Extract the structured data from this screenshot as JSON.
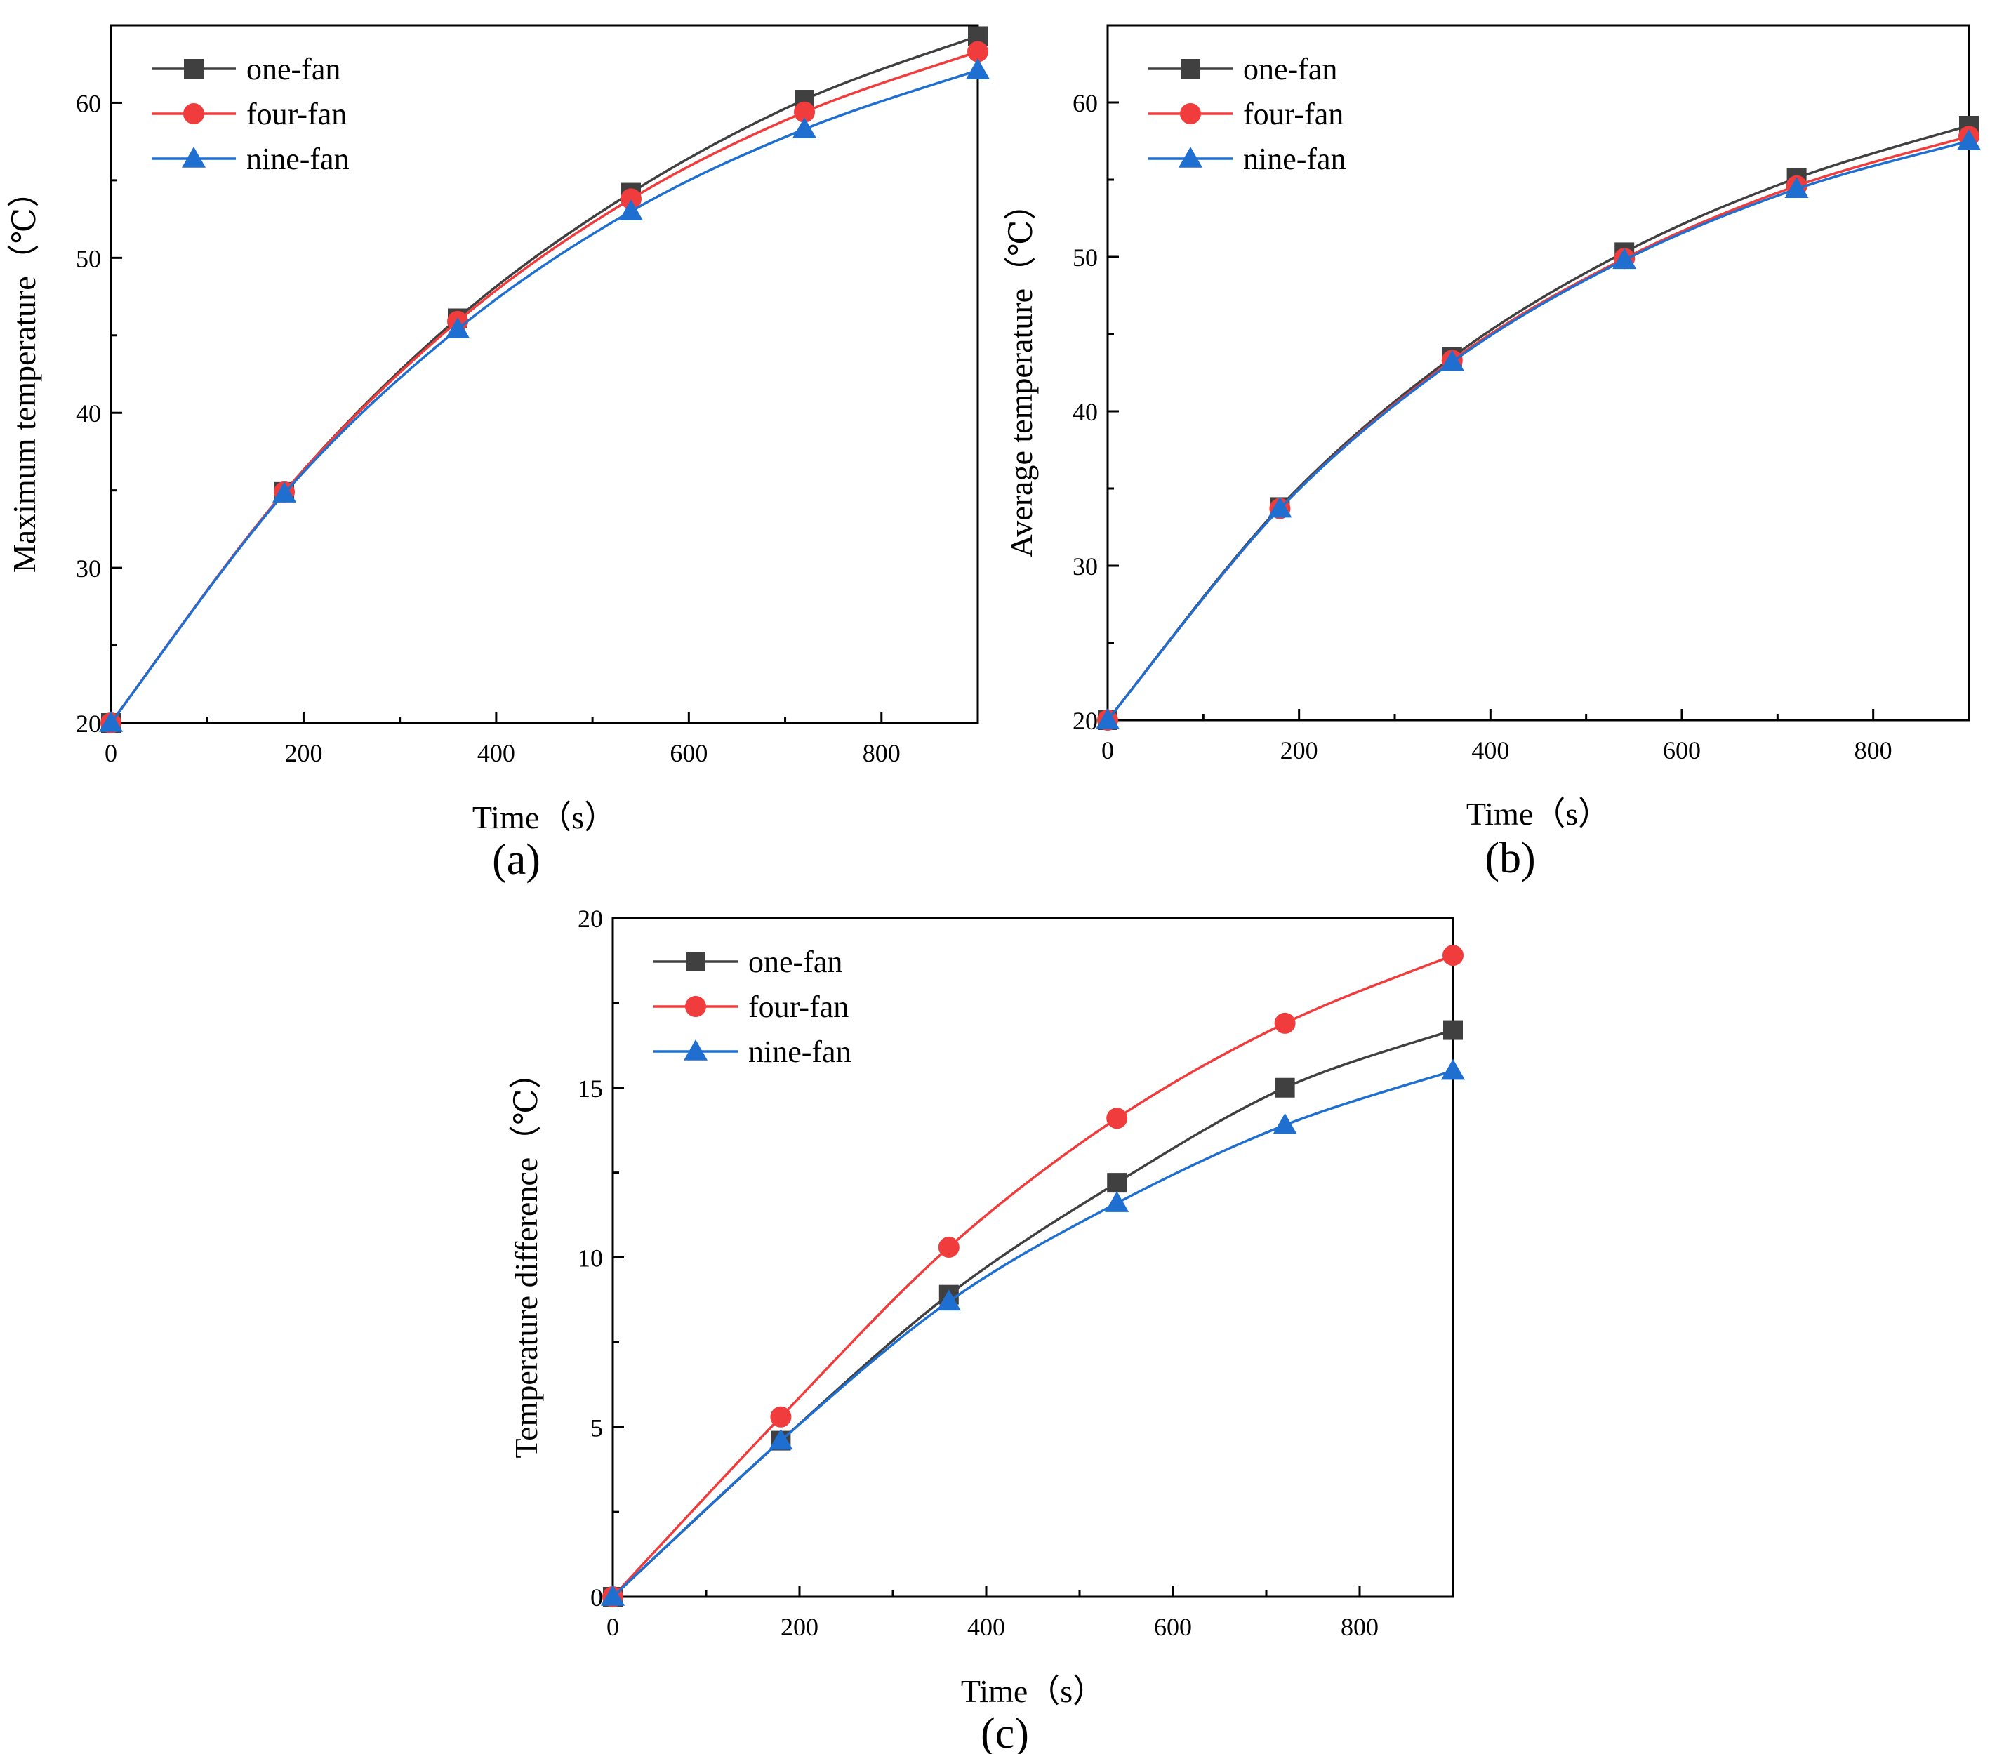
{
  "chart_data": [
    {
      "panel_label": "(a)",
      "type": "line",
      "xlabel": "Time（s）",
      "ylabel": "Maximum temperature（℃）",
      "xlim": [
        0,
        900
      ],
      "ylim": [
        20,
        65
      ],
      "xticks": [
        0,
        200,
        400,
        600,
        800
      ],
      "yticks": [
        20,
        30,
        40,
        50,
        60
      ],
      "xminor": [
        100,
        300,
        500,
        700
      ],
      "yminor": [
        25,
        35,
        45,
        55
      ],
      "legend_position": "top-left",
      "markers_x": [
        0,
        180,
        360,
        540,
        720,
        900
      ],
      "series": [
        {
          "name": "one-fan",
          "color": "#404040",
          "marker": "square",
          "x": [
            0,
            180,
            360,
            540,
            720,
            900
          ],
          "y": [
            20.0,
            34.9,
            46.1,
            54.2,
            60.2,
            64.3
          ]
        },
        {
          "name": "four-fan",
          "color": "#f03c3c",
          "marker": "circle",
          "x": [
            0,
            180,
            360,
            540,
            720,
            900
          ],
          "y": [
            20.0,
            34.9,
            45.9,
            53.8,
            59.4,
            63.3
          ]
        },
        {
          "name": "nine-fan",
          "color": "#1f6fd1",
          "marker": "triangle",
          "x": [
            0,
            180,
            360,
            540,
            720,
            900
          ],
          "y": [
            20.0,
            34.8,
            45.4,
            53.0,
            58.3,
            62.1
          ]
        }
      ]
    },
    {
      "panel_label": "(b)",
      "type": "line",
      "xlabel": "Time（s）",
      "ylabel": "Average temperature（℃）",
      "xlim": [
        0,
        900
      ],
      "ylim": [
        20,
        65
      ],
      "xticks": [
        0,
        200,
        400,
        600,
        800
      ],
      "yticks": [
        20,
        30,
        40,
        50,
        60
      ],
      "xminor": [
        100,
        300,
        500,
        700
      ],
      "yminor": [
        25,
        35,
        45,
        55
      ],
      "legend_position": "top-left",
      "markers_x": [
        0,
        180,
        360,
        540,
        720,
        900
      ],
      "series": [
        {
          "name": "one-fan",
          "color": "#404040",
          "marker": "square",
          "x": [
            0,
            180,
            360,
            540,
            720,
            900
          ],
          "y": [
            20.0,
            33.8,
            43.5,
            50.3,
            55.1,
            58.5
          ]
        },
        {
          "name": "four-fan",
          "color": "#f03c3c",
          "marker": "circle",
          "x": [
            0,
            180,
            360,
            540,
            720,
            900
          ],
          "y": [
            20.0,
            33.7,
            43.3,
            49.9,
            54.6,
            57.8
          ]
        },
        {
          "name": "nine-fan",
          "color": "#1f6fd1",
          "marker": "triangle",
          "x": [
            0,
            180,
            360,
            540,
            720,
            900
          ],
          "y": [
            20.0,
            33.7,
            43.2,
            49.8,
            54.4,
            57.5
          ]
        }
      ]
    },
    {
      "panel_label": "(c)",
      "type": "line",
      "xlabel": "Time（s）",
      "ylabel": "Temperature difference（℃）",
      "xlim": [
        0,
        900
      ],
      "ylim": [
        0,
        20
      ],
      "xticks": [
        0,
        200,
        400,
        600,
        800
      ],
      "yticks": [
        0,
        5,
        10,
        15,
        20
      ],
      "xminor": [
        100,
        300,
        500,
        700
      ],
      "yminor": [
        2.5,
        7.5,
        12.5,
        17.5
      ],
      "legend_position": "top-left",
      "markers_x": [
        0,
        180,
        360,
        540,
        720,
        900
      ],
      "series": [
        {
          "name": "one-fan",
          "color": "#404040",
          "marker": "square",
          "x": [
            0,
            180,
            360,
            540,
            720,
            900
          ],
          "y": [
            0.0,
            4.6,
            8.9,
            12.2,
            15.0,
            16.7
          ]
        },
        {
          "name": "four-fan",
          "color": "#f03c3c",
          "marker": "circle",
          "x": [
            0,
            180,
            360,
            540,
            720,
            900
          ],
          "y": [
            0.0,
            5.3,
            10.3,
            14.1,
            16.9,
            18.9
          ]
        },
        {
          "name": "nine-fan",
          "color": "#1f6fd1",
          "marker": "triangle",
          "x": [
            0,
            180,
            360,
            540,
            720,
            900
          ],
          "y": [
            0.0,
            4.6,
            8.7,
            11.6,
            13.9,
            15.5
          ]
        }
      ]
    }
  ]
}
